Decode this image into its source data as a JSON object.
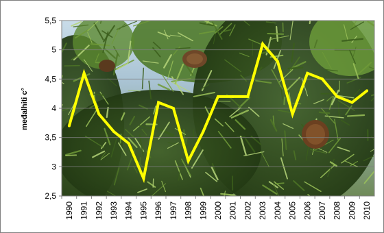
{
  "chart_data": {
    "type": "line",
    "title": "",
    "xlabel": "",
    "ylabel": "međalhiti c°",
    "x": [
      "1990",
      "1991",
      "1992",
      "1993",
      "1994",
      "1995",
      "1996",
      "1997",
      "1998",
      "1999",
      "2000",
      "2001",
      "2002",
      "2003",
      "2004",
      "2005",
      "2006",
      "2007",
      "2008",
      "2009",
      "2010"
    ],
    "series": [
      {
        "values": [
          3.7,
          4.6,
          3.9,
          3.6,
          3.4,
          2.8,
          4.1,
          4.0,
          3.1,
          3.6,
          4.2,
          4.2,
          4.2,
          5.1,
          4.8,
          3.9,
          4.6,
          4.5,
          4.2,
          4.1,
          4.3
        ]
      }
    ],
    "ylim": [
      2.5,
      5.5
    ],
    "yticks": [
      "2,5",
      "3",
      "3,5",
      "4",
      "4,5",
      "5",
      "5,5"
    ],
    "grid": true,
    "legend": "none",
    "line_color": "#ffff00",
    "background": "photograph of pine branches with cones"
  }
}
